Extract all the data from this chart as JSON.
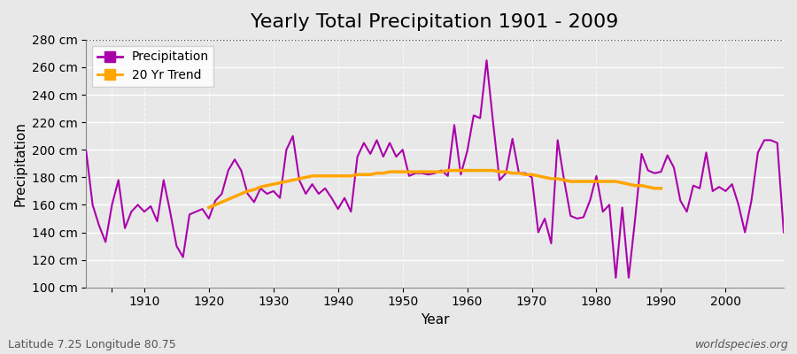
{
  "title": "Yearly Total Precipitation 1901 - 2009",
  "xlabel": "Year",
  "ylabel": "Precipitation",
  "subtitle": "Latitude 7.25 Longitude 80.75",
  "watermark": "worldspecies.org",
  "years": [
    1901,
    1902,
    1903,
    1904,
    1905,
    1906,
    1907,
    1908,
    1909,
    1910,
    1911,
    1912,
    1913,
    1914,
    1915,
    1916,
    1917,
    1918,
    1919,
    1920,
    1921,
    1922,
    1923,
    1924,
    1925,
    1926,
    1927,
    1928,
    1929,
    1930,
    1931,
    1932,
    1933,
    1934,
    1935,
    1936,
    1937,
    1938,
    1939,
    1940,
    1941,
    1942,
    1943,
    1944,
    1945,
    1946,
    1947,
    1948,
    1949,
    1950,
    1951,
    1952,
    1953,
    1954,
    1955,
    1956,
    1957,
    1958,
    1959,
    1960,
    1961,
    1962,
    1963,
    1964,
    1965,
    1966,
    1967,
    1968,
    1969,
    1970,
    1971,
    1972,
    1973,
    1974,
    1975,
    1976,
    1977,
    1978,
    1979,
    1980,
    1981,
    1982,
    1983,
    1984,
    1985,
    1986,
    1987,
    1988,
    1989,
    1990,
    1991,
    1992,
    1993,
    1994,
    1995,
    1996,
    1997,
    1998,
    1999,
    2000,
    2001,
    2002,
    2003,
    2004,
    2005,
    2006,
    2007,
    2008,
    2009
  ],
  "precip": [
    199,
    160,
    145,
    133,
    160,
    178,
    143,
    155,
    160,
    155,
    159,
    148,
    178,
    155,
    130,
    122,
    153,
    155,
    157,
    150,
    163,
    168,
    185,
    193,
    185,
    168,
    162,
    172,
    168,
    170,
    165,
    200,
    210,
    178,
    168,
    175,
    168,
    172,
    165,
    157,
    165,
    155,
    195,
    205,
    197,
    207,
    195,
    205,
    195,
    200,
    181,
    183,
    183,
    182,
    183,
    185,
    181,
    218,
    182,
    199,
    225,
    223,
    265,
    220,
    178,
    183,
    208,
    183,
    183,
    180,
    140,
    150,
    132,
    207,
    178,
    152,
    150,
    151,
    163,
    181,
    155,
    160,
    107,
    158,
    107,
    150,
    197,
    185,
    183,
    184,
    196,
    187,
    163,
    155,
    174,
    172,
    198,
    170,
    173,
    170,
    175,
    160,
    140,
    163,
    198,
    207,
    207,
    205,
    140
  ],
  "trend_years": [
    1920,
    1921,
    1922,
    1923,
    1924,
    1925,
    1926,
    1927,
    1928,
    1929,
    1930,
    1931,
    1932,
    1933,
    1934,
    1935,
    1936,
    1937,
    1938,
    1939,
    1940,
    1941,
    1942,
    1943,
    1944,
    1945,
    1946,
    1947,
    1948,
    1949,
    1950,
    1951,
    1952,
    1953,
    1954,
    1955,
    1956,
    1957,
    1958,
    1959,
    1960,
    1961,
    1962,
    1963,
    1964,
    1965,
    1966,
    1967,
    1968,
    1969,
    1970,
    1971,
    1972,
    1973,
    1974,
    1975,
    1976,
    1977,
    1978,
    1979,
    1980,
    1981,
    1982,
    1983,
    1984,
    1985,
    1986,
    1987,
    1988,
    1989,
    1990
  ],
  "trend": [
    158,
    160,
    162,
    164,
    166,
    168,
    170,
    171,
    173,
    174,
    175,
    176,
    177,
    178,
    179,
    180,
    181,
    181,
    181,
    181,
    181,
    181,
    181,
    182,
    182,
    182,
    183,
    183,
    184,
    184,
    184,
    184,
    184,
    184,
    184,
    184,
    184,
    185,
    185,
    185,
    185,
    185,
    185,
    185,
    185,
    184,
    184,
    183,
    183,
    182,
    182,
    181,
    180,
    179,
    179,
    178,
    177,
    177,
    177,
    177,
    177,
    177,
    177,
    177,
    176,
    175,
    174,
    174,
    173,
    172,
    172
  ],
  "ylim": [
    100,
    280
  ],
  "yticks": [
    100,
    120,
    140,
    160,
    180,
    200,
    220,
    240,
    260,
    280
  ],
  "ytick_labels": [
    "100 cm",
    "120 cm",
    "140 cm",
    "160 cm",
    "180 cm",
    "200 cm",
    "220 cm",
    "240 cm",
    "260 cm",
    "280 cm"
  ],
  "xticks": [
    1905,
    1910,
    1920,
    1930,
    1940,
    1950,
    1960,
    1970,
    1980,
    1990,
    2000
  ],
  "xtick_labels": [
    "",
    "1910",
    "1920",
    "1930",
    "1940",
    "1950",
    "1960",
    "1970",
    "1980",
    "1990",
    "2000"
  ],
  "precip_color": "#aa00aa",
  "trend_color": "#ffa500",
  "bg_color": "#e8e8e8",
  "plot_bg_color": "#e8e8e8",
  "grid_color": "#ffffff",
  "top_line_color": "#555555",
  "title_fontsize": 16,
  "axis_label_fontsize": 11,
  "tick_label_fontsize": 10,
  "legend_fontsize": 10,
  "precip_linewidth": 1.5,
  "trend_linewidth": 2.5
}
